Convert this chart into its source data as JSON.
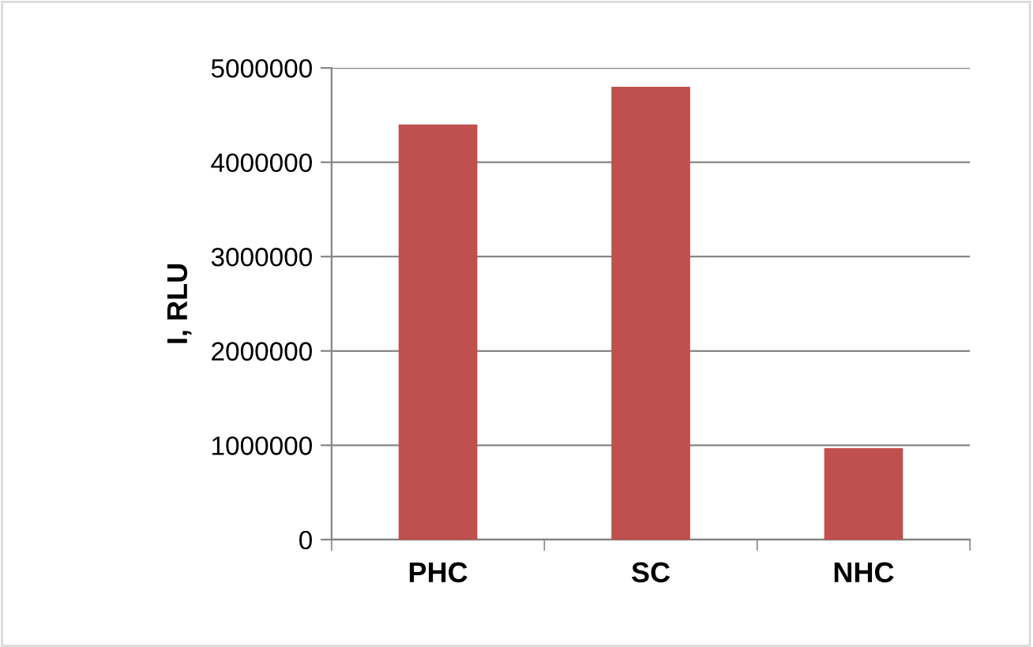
{
  "chart_data": {
    "type": "bar",
    "ylabel": "I, RLU",
    "categories": [
      "PHC",
      "SC",
      "NHC"
    ],
    "values": [
      4400000,
      4800000,
      970000
    ],
    "color": "#c0504d",
    "ylim": [
      0,
      5000000
    ],
    "yticks": [
      0,
      1000000,
      2000000,
      3000000,
      4000000,
      5000000
    ],
    "grid": "y",
    "legend": false
  }
}
